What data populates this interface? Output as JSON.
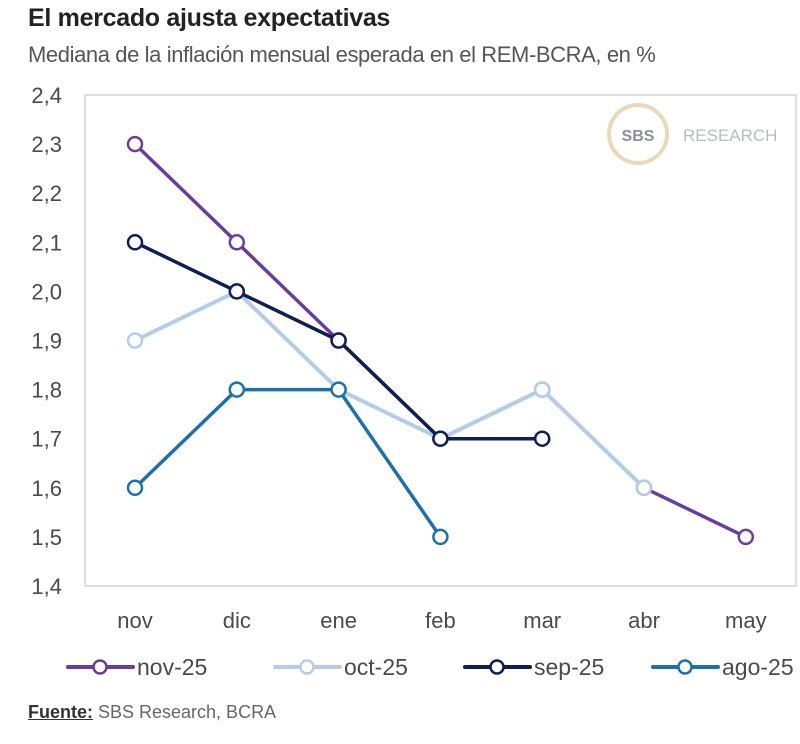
{
  "header": {
    "title": "El mercado ajusta expectativas",
    "subtitle": "Mediana de la inflación mensual esperada en el REM-BCRA, en %"
  },
  "watermark": {
    "circle_text": "SBS",
    "text": "RESEARCH"
  },
  "source": {
    "label": "Fuente:",
    "text": " SBS Research, BCRA"
  },
  "chart_data": {
    "type": "line",
    "title": "El mercado ajusta expectativas",
    "subtitle": "Mediana de la inflación mensual esperada en el REM-BCRA, en %",
    "xlabel": "",
    "ylabel": "",
    "categories": [
      "nov",
      "dic",
      "ene",
      "feb",
      "mar",
      "abr",
      "may"
    ],
    "ylim": [
      1.4,
      2.4
    ],
    "yticks": [
      1.4,
      1.5,
      1.6,
      1.7,
      1.8,
      1.9,
      2.0,
      2.1,
      2.2,
      2.3,
      2.4
    ],
    "ytick_labels": [
      "1,4",
      "1,5",
      "1,6",
      "1,7",
      "1,8",
      "1,9",
      "2,0",
      "2,1",
      "2,2",
      "2,3",
      "2,4"
    ],
    "grid": false,
    "legend_position": "bottom",
    "series": [
      {
        "name": "nov-25",
        "color": "#6a3d9a",
        "values": [
          2.3,
          2.1,
          1.9,
          1.7,
          1.8,
          1.6,
          1.5
        ]
      },
      {
        "name": "oct-25",
        "color": "#b4cce6",
        "values": [
          1.9,
          2.0,
          1.8,
          1.7,
          1.8,
          1.6,
          null
        ]
      },
      {
        "name": "sep-25",
        "color": "#0f1f4f",
        "values": [
          2.1,
          2.0,
          1.9,
          1.7,
          1.7,
          null,
          null
        ]
      },
      {
        "name": "ago-25",
        "color": "#1f6fa8",
        "values": [
          1.6,
          1.8,
          1.8,
          1.5,
          null,
          null,
          null
        ]
      }
    ],
    "draw_order": [
      "nov-25",
      "oct-25",
      "sep-25",
      "ago-25"
    ]
  }
}
